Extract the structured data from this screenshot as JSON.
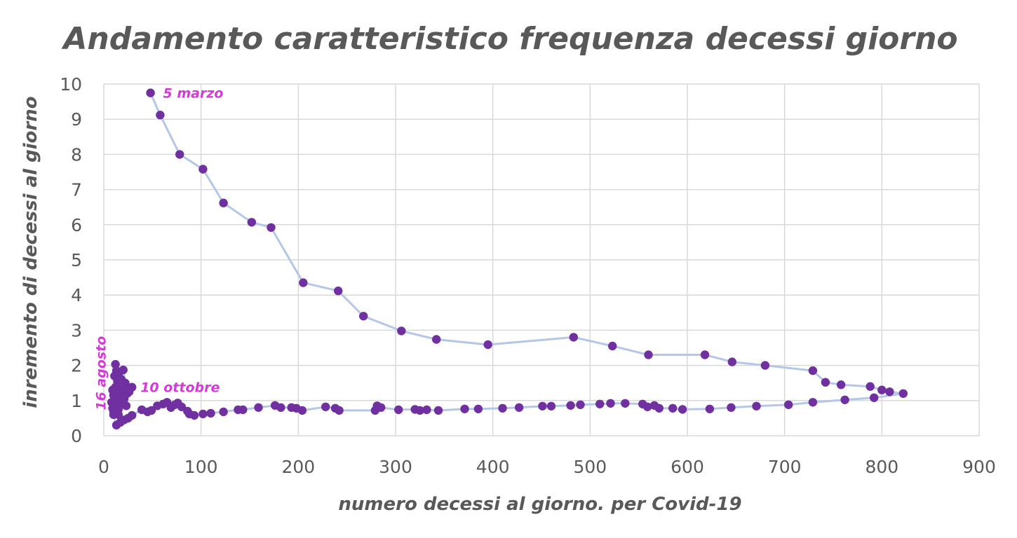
{
  "chart_data": {
    "type": "scatter",
    "title": "Andamento caratteristico frequenza decessi giorno",
    "xlabel": "numero decessi al giorno. per Covid-19",
    "ylabel": "inremento di decessi al giorno",
    "xlim": [
      0,
      900
    ],
    "ylim": [
      0,
      10
    ],
    "x_ticks": [
      "0",
      "100",
      "200",
      "300",
      "400",
      "500",
      "600",
      "700",
      "800",
      "900"
    ],
    "y_ticks": [
      "0",
      "1",
      "2",
      "3",
      "4",
      "5",
      "6",
      "7",
      "8",
      "9",
      "10"
    ],
    "grid": true,
    "colors": {
      "points": "#7030a0",
      "line": "#b4c7e7",
      "annotations": "#d63ad6",
      "text": "#595959",
      "grid": "#d9d9d9"
    },
    "annotations": [
      {
        "text": "5 marzo",
        "x": 48,
        "y": 9.75
      },
      {
        "text": "10 ottobre",
        "x": 29,
        "y": 1.38
      },
      {
        "text": "16 agosto",
        "x": 6,
        "y": 1.3
      }
    ],
    "series": [
      {
        "points": [
          [
            48,
            9.75
          ],
          [
            58,
            9.12
          ],
          [
            78,
            8.0
          ],
          [
            102,
            7.58
          ],
          [
            123,
            6.62
          ],
          [
            152,
            6.07
          ],
          [
            172,
            5.92
          ],
          [
            205,
            4.35
          ],
          [
            241,
            4.12
          ],
          [
            267,
            3.4
          ],
          [
            306,
            2.98
          ],
          [
            342,
            2.74
          ],
          [
            395,
            2.59
          ],
          [
            483,
            2.8
          ],
          [
            523,
            2.55
          ],
          [
            560,
            2.3
          ],
          [
            618,
            2.3
          ],
          [
            646,
            2.1
          ],
          [
            680,
            2.0
          ],
          [
            729,
            1.85
          ],
          [
            742,
            1.52
          ],
          [
            758,
            1.45
          ],
          [
            788,
            1.4
          ],
          [
            800,
            1.3
          ],
          [
            808,
            1.25
          ],
          [
            822,
            1.2
          ],
          [
            792,
            1.08
          ],
          [
            762,
            1.02
          ],
          [
            729,
            0.95
          ],
          [
            704,
            0.88
          ],
          [
            671,
            0.84
          ],
          [
            645,
            0.8
          ],
          [
            623,
            0.76
          ],
          [
            595,
            0.75
          ],
          [
            585,
            0.78
          ],
          [
            571,
            0.78
          ],
          [
            566,
            0.86
          ],
          [
            559,
            0.82
          ],
          [
            554,
            0.9
          ],
          [
            536,
            0.92
          ],
          [
            521,
            0.92
          ],
          [
            510,
            0.9
          ],
          [
            490,
            0.88
          ],
          [
            480,
            0.86
          ],
          [
            460,
            0.84
          ],
          [
            451,
            0.84
          ],
          [
            427,
            0.8
          ],
          [
            410,
            0.78
          ],
          [
            385,
            0.76
          ],
          [
            371,
            0.76
          ],
          [
            344,
            0.72
          ],
          [
            332,
            0.74
          ],
          [
            325,
            0.72
          ],
          [
            320,
            0.75
          ],
          [
            303,
            0.74
          ],
          [
            285,
            0.8
          ],
          [
            281,
            0.85
          ],
          [
            279,
            0.72
          ],
          [
            242,
            0.72
          ],
          [
            238,
            0.78
          ],
          [
            228,
            0.82
          ],
          [
            204,
            0.72
          ],
          [
            198,
            0.78
          ],
          [
            193,
            0.8
          ],
          [
            182,
            0.8
          ],
          [
            176,
            0.86
          ],
          [
            159,
            0.8
          ],
          [
            143,
            0.74
          ],
          [
            138,
            0.74
          ],
          [
            123,
            0.68
          ],
          [
            110,
            0.64
          ],
          [
            102,
            0.62
          ],
          [
            93,
            0.58
          ],
          [
            88,
            0.62
          ],
          [
            86,
            0.7
          ],
          [
            80,
            0.82
          ],
          [
            76,
            0.93
          ],
          [
            73,
            0.88
          ],
          [
            69,
            0.8
          ],
          [
            65,
            0.95
          ],
          [
            61,
            0.9
          ],
          [
            55,
            0.85
          ],
          [
            49,
            0.72
          ],
          [
            45,
            0.68
          ],
          [
            39,
            0.74
          ],
          [
            29,
            0.58
          ],
          [
            25,
            0.5
          ],
          [
            21,
            0.45
          ],
          [
            17,
            0.38
          ],
          [
            13,
            0.3
          ],
          [
            10,
            0.6
          ],
          [
            9,
            0.78
          ],
          [
            8,
            0.95
          ],
          [
            10,
            1.15
          ],
          [
            9,
            1.3
          ],
          [
            12,
            1.38
          ],
          [
            14,
            1.55
          ],
          [
            11,
            1.7
          ],
          [
            13,
            1.85
          ],
          [
            12,
            2.03
          ],
          [
            15,
            1.75
          ],
          [
            18,
            1.6
          ],
          [
            20,
            1.87
          ],
          [
            22,
            1.5
          ],
          [
            19,
            1.35
          ],
          [
            24,
            1.2
          ],
          [
            21,
            1.05
          ],
          [
            17,
            0.9
          ],
          [
            15,
            0.75
          ],
          [
            13,
            0.65
          ],
          [
            11,
            0.88
          ],
          [
            14,
            1.1
          ],
          [
            16,
            1.3
          ],
          [
            18,
            1.15
          ],
          [
            22,
            1.3
          ],
          [
            26,
            1.25
          ],
          [
            29,
            1.38
          ],
          [
            20,
            0.98
          ],
          [
            23,
            0.85
          ],
          [
            12,
            1.0
          ],
          [
            10,
            0.7
          ],
          [
            15,
            0.6
          ]
        ]
      }
    ]
  }
}
